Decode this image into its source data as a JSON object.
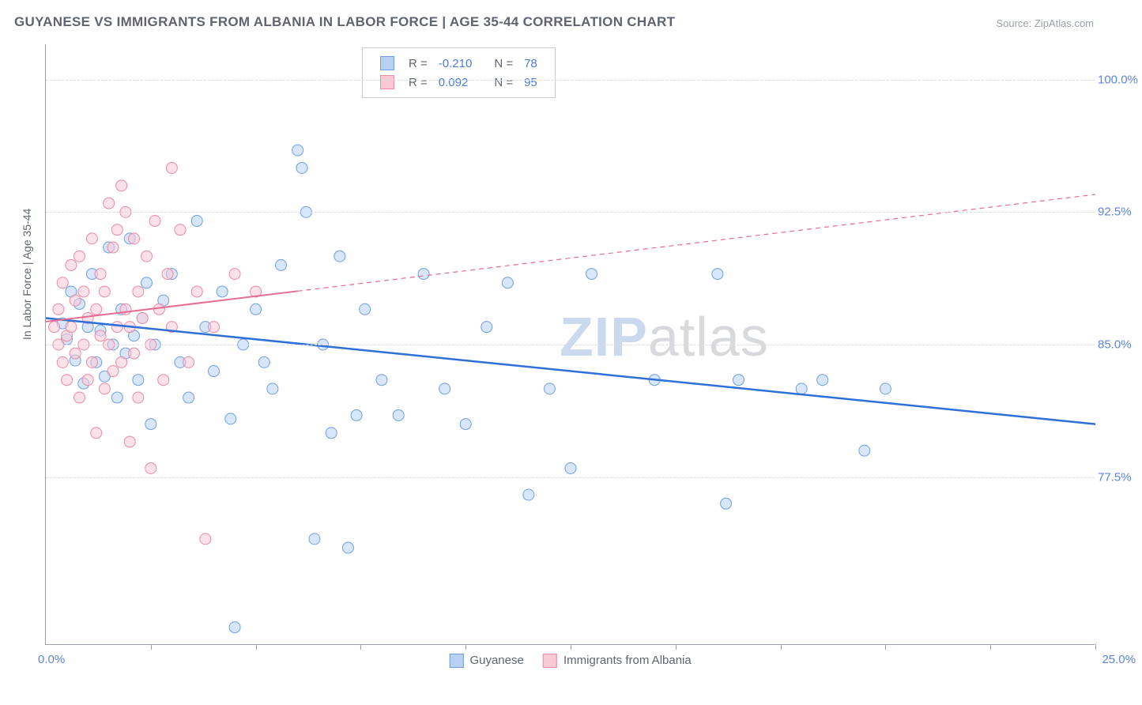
{
  "title": "GUYANESE VS IMMIGRANTS FROM ALBANIA IN LABOR FORCE | AGE 35-44 CORRELATION CHART",
  "source": "Source: ZipAtlas.com",
  "y_axis_title": "In Labor Force | Age 35-44",
  "watermark": {
    "zip": "ZIP",
    "atlas": "atlas"
  },
  "chart": {
    "type": "scatter",
    "xlim": [
      0,
      25
    ],
    "ylim": [
      68,
      102
    ],
    "x_ticks": [
      2.5,
      5,
      7.5,
      10,
      12.5,
      15,
      17.5,
      20,
      22.5,
      25
    ],
    "x_labels": [
      {
        "v": 0,
        "t": "0.0%"
      },
      {
        "v": 25,
        "t": "25.0%"
      }
    ],
    "y_gridlines": [
      77.5,
      85,
      92.5,
      100
    ],
    "y_labels": [
      "77.5%",
      "85.0%",
      "92.5%",
      "100.0%"
    ],
    "background_color": "#ffffff",
    "grid_color": "#d9dce1",
    "axis_color": "#9aa0ae",
    "label_color": "#5b86d8",
    "point_radius": 7,
    "point_opacity": 0.55,
    "series": [
      {
        "name": "Guyanese",
        "fill": "#b7d1f2",
        "stroke": "#6f9fe0",
        "trend": {
          "x1": 0,
          "y1": 86.5,
          "x2": 25,
          "y2": 80.5,
          "solid_until_x": 25,
          "stroke": "#2f6fd8",
          "width": 2.5
        },
        "points": [
          [
            0.4,
            86.2
          ],
          [
            0.5,
            85.3
          ],
          [
            0.6,
            88.0
          ],
          [
            0.7,
            84.1
          ],
          [
            0.8,
            87.3
          ],
          [
            0.9,
            82.8
          ],
          [
            1.0,
            86.0
          ],
          [
            1.1,
            89.0
          ],
          [
            1.2,
            84.0
          ],
          [
            1.3,
            85.8
          ],
          [
            1.4,
            83.2
          ],
          [
            1.5,
            90.5
          ],
          [
            1.6,
            85.0
          ],
          [
            1.7,
            82.0
          ],
          [
            1.8,
            87.0
          ],
          [
            1.9,
            84.5
          ],
          [
            2.0,
            91.0
          ],
          [
            2.1,
            85.5
          ],
          [
            2.2,
            83.0
          ],
          [
            2.3,
            86.5
          ],
          [
            2.4,
            88.5
          ],
          [
            2.5,
            80.5
          ],
          [
            2.6,
            85.0
          ],
          [
            2.8,
            87.5
          ],
          [
            3.0,
            89.0
          ],
          [
            3.2,
            84.0
          ],
          [
            3.4,
            82.0
          ],
          [
            3.6,
            92.0
          ],
          [
            3.8,
            86.0
          ],
          [
            4.0,
            83.5
          ],
          [
            4.2,
            88.0
          ],
          [
            4.4,
            80.8
          ],
          [
            4.5,
            69.0
          ],
          [
            4.7,
            85.0
          ],
          [
            5.0,
            87.0
          ],
          [
            5.2,
            84.0
          ],
          [
            5.4,
            82.5
          ],
          [
            5.6,
            89.5
          ],
          [
            6.0,
            96.0
          ],
          [
            6.1,
            95.0
          ],
          [
            6.2,
            92.5
          ],
          [
            6.4,
            74.0
          ],
          [
            6.6,
            85.0
          ],
          [
            6.8,
            80.0
          ],
          [
            7.0,
            90.0
          ],
          [
            7.2,
            73.5
          ],
          [
            7.4,
            81.0
          ],
          [
            7.6,
            87.0
          ],
          [
            8.0,
            83.0
          ],
          [
            8.4,
            81.0
          ],
          [
            9.0,
            89.0
          ],
          [
            9.5,
            82.5
          ],
          [
            10.0,
            80.5
          ],
          [
            10.5,
            86.0
          ],
          [
            11.0,
            88.5
          ],
          [
            11.5,
            76.5
          ],
          [
            12.0,
            82.5
          ],
          [
            12.5,
            78.0
          ],
          [
            13.0,
            89.0
          ],
          [
            14.5,
            83.0
          ],
          [
            16.0,
            89.0
          ],
          [
            16.2,
            76.0
          ],
          [
            16.5,
            83.0
          ],
          [
            18.0,
            82.5
          ],
          [
            18.5,
            83.0
          ],
          [
            19.5,
            79.0
          ],
          [
            20.0,
            82.5
          ]
        ]
      },
      {
        "name": "Immigrants from Albania",
        "fill": "#fac9d6",
        "stroke": "#e88ba5",
        "trend": {
          "x1": 0,
          "y1": 86.3,
          "x2": 25,
          "y2": 93.5,
          "solid_until_x": 6,
          "stroke": "#e56d90",
          "width": 2,
          "dash": "6,5"
        },
        "points": [
          [
            0.2,
            86.0
          ],
          [
            0.3,
            85.0
          ],
          [
            0.3,
            87.0
          ],
          [
            0.4,
            84.0
          ],
          [
            0.4,
            88.5
          ],
          [
            0.5,
            85.5
          ],
          [
            0.5,
            83.0
          ],
          [
            0.6,
            89.5
          ],
          [
            0.6,
            86.0
          ],
          [
            0.7,
            84.5
          ],
          [
            0.7,
            87.5
          ],
          [
            0.8,
            82.0
          ],
          [
            0.8,
            90.0
          ],
          [
            0.9,
            85.0
          ],
          [
            0.9,
            88.0
          ],
          [
            1.0,
            83.0
          ],
          [
            1.0,
            86.5
          ],
          [
            1.1,
            91.0
          ],
          [
            1.1,
            84.0
          ],
          [
            1.2,
            87.0
          ],
          [
            1.2,
            80.0
          ],
          [
            1.3,
            85.5
          ],
          [
            1.3,
            89.0
          ],
          [
            1.4,
            82.5
          ],
          [
            1.4,
            88.0
          ],
          [
            1.5,
            93.0
          ],
          [
            1.5,
            85.0
          ],
          [
            1.6,
            83.5
          ],
          [
            1.6,
            90.5
          ],
          [
            1.7,
            86.0
          ],
          [
            1.7,
            91.5
          ],
          [
            1.8,
            84.0
          ],
          [
            1.8,
            94.0
          ],
          [
            1.9,
            92.5
          ],
          [
            1.9,
            87.0
          ],
          [
            2.0,
            79.5
          ],
          [
            2.0,
            86.0
          ],
          [
            2.1,
            91.0
          ],
          [
            2.1,
            84.5
          ],
          [
            2.2,
            88.0
          ],
          [
            2.2,
            82.0
          ],
          [
            2.3,
            86.5
          ],
          [
            2.4,
            90.0
          ],
          [
            2.5,
            85.0
          ],
          [
            2.5,
            78.0
          ],
          [
            2.6,
            92.0
          ],
          [
            2.7,
            87.0
          ],
          [
            2.8,
            83.0
          ],
          [
            2.9,
            89.0
          ],
          [
            3.0,
            95.0
          ],
          [
            3.0,
            86.0
          ],
          [
            3.2,
            91.5
          ],
          [
            3.4,
            84.0
          ],
          [
            3.6,
            88.0
          ],
          [
            3.8,
            74.0
          ],
          [
            4.0,
            86.0
          ],
          [
            4.5,
            89.0
          ],
          [
            5.0,
            88.0
          ]
        ]
      }
    ]
  },
  "top_legend": {
    "rows": [
      {
        "sw_fill": "#b7d1f2",
        "sw_stroke": "#6f9fe0",
        "r_label": "R =",
        "r_val": "-0.210",
        "n_label": "N =",
        "n_val": "78"
      },
      {
        "sw_fill": "#fac9d6",
        "sw_stroke": "#e88ba5",
        "r_label": "R =",
        "r_val": "0.092",
        "n_label": "N =",
        "n_val": "95"
      }
    ]
  },
  "bottom_legend": {
    "items": [
      {
        "sw_fill": "#b7d1f2",
        "sw_stroke": "#6f9fe0",
        "label": "Guyanese"
      },
      {
        "sw_fill": "#fac9d6",
        "sw_stroke": "#e88ba5",
        "label": "Immigrants from Albania"
      }
    ]
  }
}
